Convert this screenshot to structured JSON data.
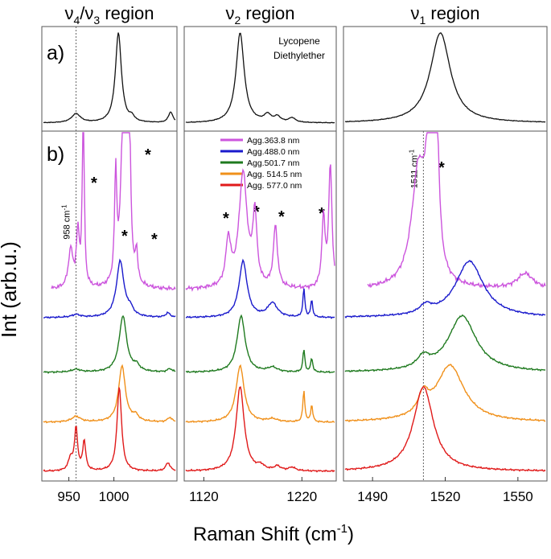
{
  "chart_data": {
    "type": "line",
    "ylabel": "Int (arb.u.)",
    "xlabel": "Raman Shift (cm",
    "xlabel_sup": "-1",
    "xlabel_close": ")",
    "panel_labels": {
      "a": "a)",
      "b": "b)"
    },
    "sample_label": [
      "Lycopene",
      "Diethylether"
    ],
    "peak_marker": "*",
    "regions": [
      {
        "title_main": "ν",
        "title_sub": "4",
        "title_sep": "/ν",
        "title_sub2": "3",
        "title_rest": " region",
        "xlim": [
          920,
          1070
        ],
        "ticks": [
          950,
          1000
        ],
        "tick_labels": [
          "950",
          "1000"
        ],
        "dotted_line": 958,
        "dotted_label": "958 cm",
        "dotted_label_sup": "-1"
      },
      {
        "title_main": "ν",
        "title_sub": "2",
        "title_sep": "",
        "title_sub2": "",
        "title_rest": " region",
        "xlim": [
          1100,
          1255
        ],
        "ticks": [
          1120,
          1220
        ],
        "tick_labels": [
          "1120",
          "1220"
        ]
      },
      {
        "title_main": "ν",
        "title_sub": "1",
        "title_sep": "",
        "title_sub2": "",
        "title_rest": " region",
        "xlim": [
          1478,
          1562
        ],
        "ticks": [
          1490,
          1520,
          1550
        ],
        "tick_labels": [
          "1490",
          "1520",
          "1550"
        ],
        "dotted_line": 1511,
        "dotted_label": "1511 cm",
        "dotted_label_sup": "-1"
      }
    ],
    "series": [
      {
        "name": "Agg.363.8 nm",
        "color": "#cc55dd"
      },
      {
        "name": "Agg.488.0 nm",
        "color": "#1a1acc"
      },
      {
        "name": "Agg.501.7 nm",
        "color": "#1f7a1f"
      },
      {
        "name": "Agg. 514.5 nm",
        "color": "#f0901a"
      },
      {
        "name": "Agg. 577.0 nm",
        "color": "#e01a1a"
      }
    ],
    "top_trace": {
      "name": "Lycopene Diethylether",
      "color": "#111111"
    },
    "peaks": {
      "top": [
        [
          [
            958,
            0.1,
            6
          ],
          [
            1005,
            1.0,
            4
          ],
          [
            1020,
            0.05,
            3
          ],
          [
            1063,
            0.12,
            3
          ]
        ],
        [
          [
            1157,
            1.0,
            5
          ],
          [
            1185,
            0.08,
            4
          ],
          [
            1195,
            0.06,
            4
          ],
          [
            1210,
            0.05,
            4
          ]
        ],
        [
          [
            1518,
            1.0,
            5
          ]
        ]
      ],
      "spectra": [
        [
          [
            [
              952,
              0.25,
              3
            ],
            [
              960,
              0.35,
              2
            ],
            [
              966,
              1.3,
              1.2
            ],
            [
              1002,
              0.7,
              1.5
            ],
            [
              1010,
              0.95,
              3
            ],
            [
              1015,
              1.15,
              2
            ],
            [
              1017,
              0.85,
              1.5
            ],
            [
              1025,
              0.2,
              1.5
            ]
          ],
          [
            [
              1145,
              0.3,
              3
            ],
            [
              1160,
              0.75,
              5
            ],
            [
              1172,
              0.45,
              2.5
            ],
            [
              1193,
              0.4,
              2.5
            ],
            [
              1242,
              0.45,
              2
            ],
            [
              1249,
              0.8,
              2
            ]
          ],
          [
            [
              1509,
              0.75,
              3.5
            ],
            [
              1513,
              0.6,
              1.5
            ],
            [
              1516,
              1.5,
              1.2
            ],
            [
              1553,
              0.1,
              4
            ]
          ]
        ],
        [
          [
            [
              958,
              0.05,
              6
            ],
            [
              1007,
              1.0,
              5
            ],
            [
              1018,
              0.12,
              4
            ],
            [
              1060,
              0.08,
              3
            ]
          ],
          [
            [
              1160,
              1.0,
              5
            ],
            [
              1190,
              0.25,
              6
            ],
            [
              1222,
              0.5,
              1.2
            ],
            [
              1230,
              0.3,
              1.2
            ]
          ],
          [
            [
              1512,
              0.15,
              3
            ],
            [
              1530,
              1.0,
              7
            ]
          ]
        ],
        [
          [
            [
              958,
              0.05,
              6
            ],
            [
              1010,
              1.0,
              5
            ],
            [
              1025,
              0.1,
              4
            ],
            [
              1062,
              0.06,
              3
            ]
          ],
          [
            [
              1158,
              1.0,
              5
            ],
            [
              1190,
              0.08,
              6
            ],
            [
              1222,
              0.4,
              1.2
            ],
            [
              1230,
              0.25,
              1.2
            ]
          ],
          [
            [
              1511,
              0.2,
              3
            ],
            [
              1527,
              1.0,
              7
            ]
          ]
        ],
        [
          [
            [
              958,
              0.1,
              6
            ],
            [
              1009,
              1.0,
              4.5
            ],
            [
              1024,
              0.1,
              4
            ],
            [
              1062,
              0.08,
              3
            ]
          ],
          [
            [
              1157,
              1.0,
              5
            ],
            [
              1190,
              0.05,
              6
            ],
            [
              1222,
              0.55,
              1.2
            ],
            [
              1230,
              0.3,
              1.2
            ]
          ],
          [
            [
              1511,
              0.35,
              2.5
            ],
            [
              1522,
              1.0,
              7
            ]
          ]
        ],
        [
          [
            [
              952,
              0.15,
              3
            ],
            [
              958,
              0.5,
              2
            ],
            [
              967,
              0.35,
              2
            ],
            [
              1006,
              1.0,
              3
            ],
            [
              1060,
              0.1,
              3
            ]
          ],
          [
            [
              1157,
              1.0,
              5
            ],
            [
              1178,
              0.05,
              4
            ],
            [
              1195,
              0.05,
              4
            ],
            [
              1210,
              0.04,
              4
            ]
          ],
          [
            [
              1511,
              1.0,
              5
            ]
          ]
        ]
      ]
    }
  }
}
